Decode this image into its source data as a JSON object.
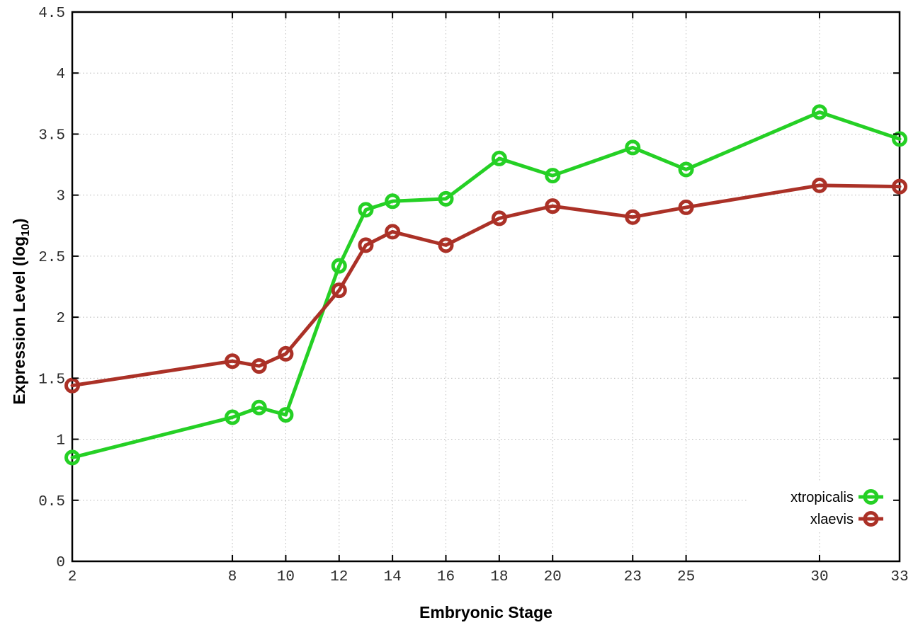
{
  "figure": {
    "background": "#ffffff",
    "xlabel": "Embryonic Stage",
    "ylabel": {
      "prefix": "Expression Level (log",
      "sub": "10",
      "suffix": ")"
    }
  },
  "chart_data": {
    "type": "line",
    "title": "",
    "xlabel": "Embryonic Stage",
    "ylabel": "Expression Level (log10)",
    "x": [
      2,
      8,
      9,
      10,
      12,
      13,
      14,
      16,
      18,
      20,
      23,
      25,
      30,
      33
    ],
    "series": [
      {
        "name": "xtropicalis",
        "color": "#25d025",
        "values": [
          0.85,
          1.18,
          1.26,
          1.2,
          2.42,
          2.88,
          2.95,
          2.97,
          3.3,
          3.16,
          3.39,
          3.21,
          3.68,
          3.46
        ]
      },
      {
        "name": "xlaevis",
        "color": "#ab3127",
        "values": [
          1.44,
          1.64,
          1.6,
          1.7,
          2.22,
          2.59,
          2.7,
          2.59,
          2.81,
          2.91,
          2.82,
          2.9,
          3.08,
          3.07
        ]
      }
    ],
    "xlim": [
      2,
      33
    ],
    "ylim": [
      0,
      4.5
    ],
    "x_ticks": [
      2,
      8,
      10,
      12,
      14,
      16,
      18,
      20,
      23,
      25,
      30,
      33
    ],
    "y_ticks": [
      0,
      0.5,
      1,
      1.5,
      2,
      2.5,
      3,
      3.5,
      4,
      4.5
    ],
    "grid": true,
    "grid_color": "#b8b8b8",
    "border_color": "#000000",
    "legend_position": "bottom-right",
    "marker": "open-circle"
  }
}
